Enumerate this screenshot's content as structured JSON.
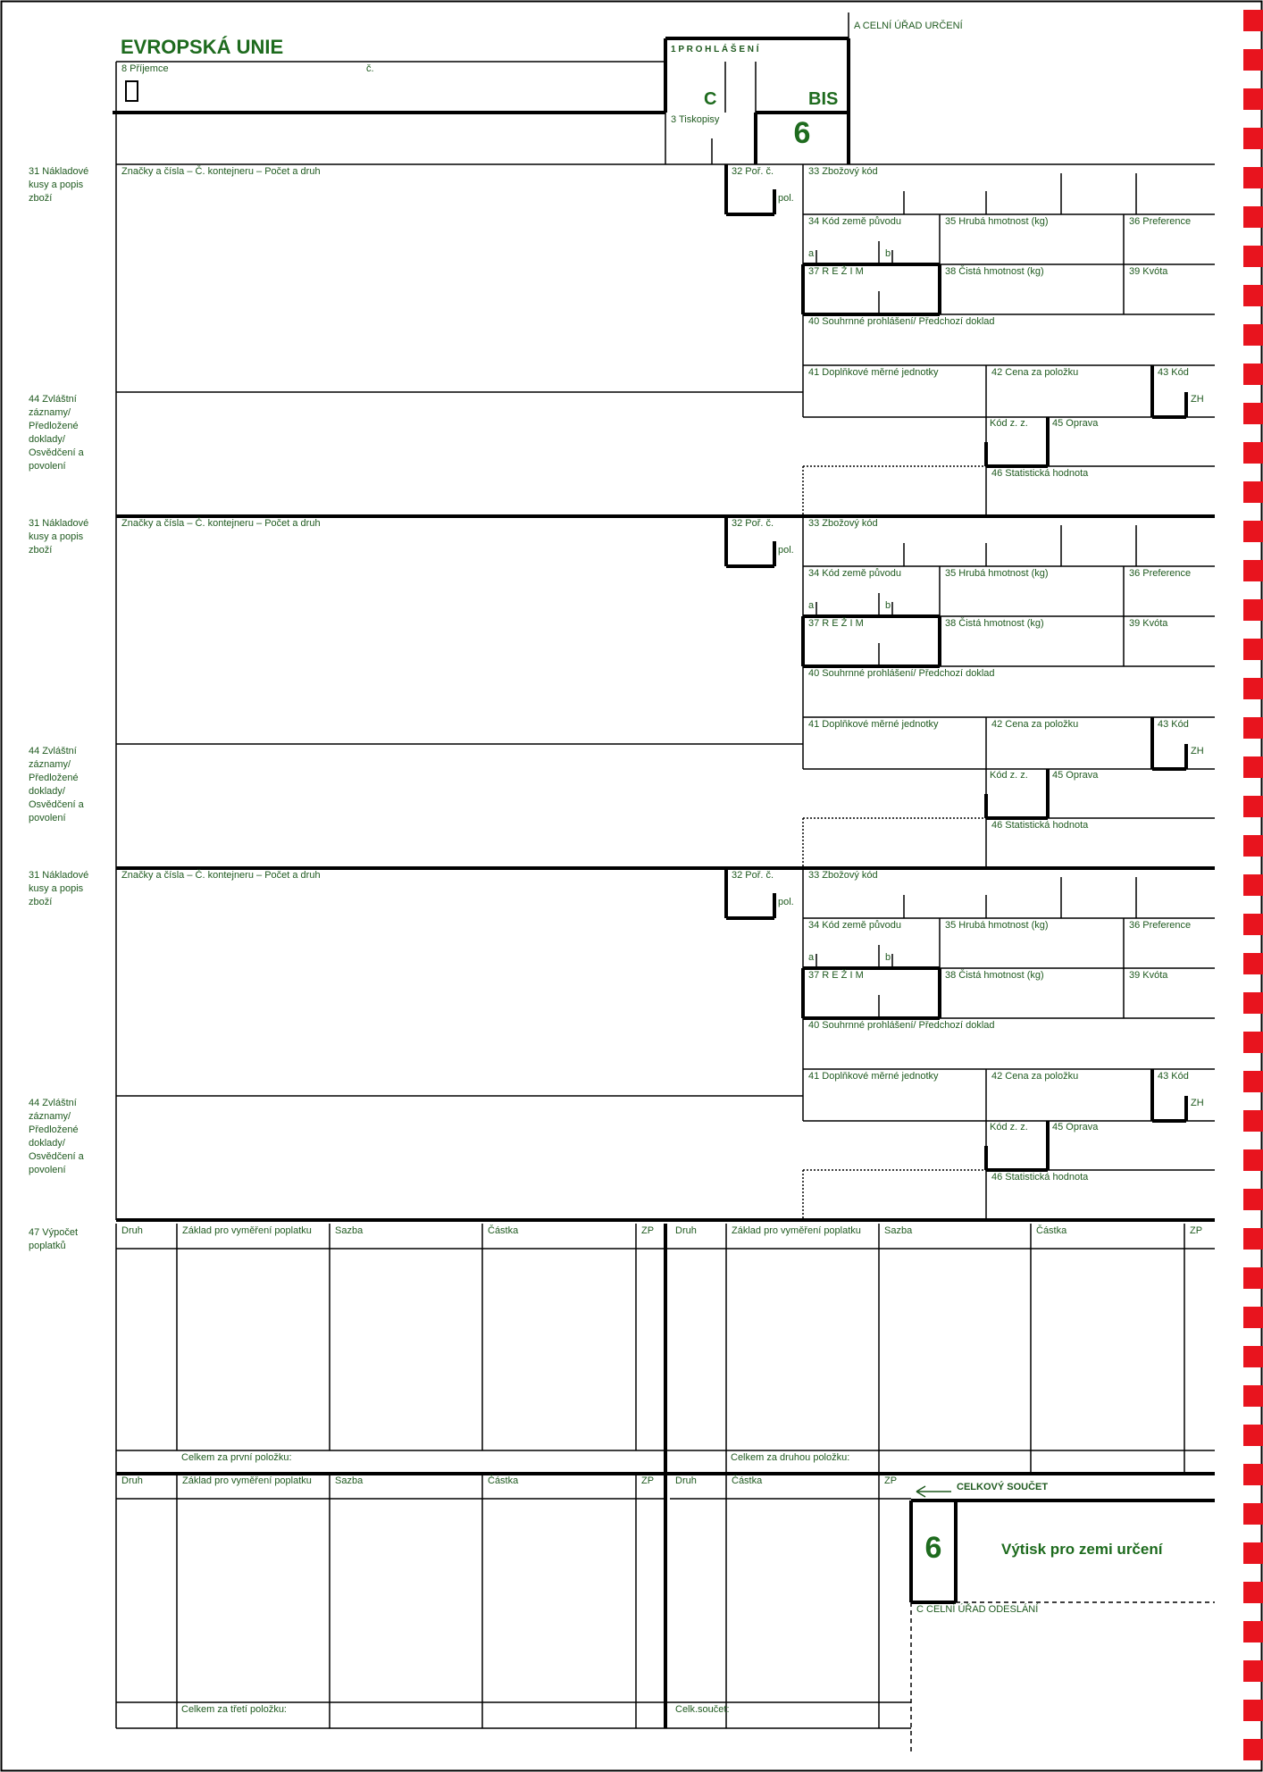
{
  "form": {
    "title": "EVROPSKÁ UNIE",
    "box_a": "A  CELNÍ ÚŘAD URČENÍ",
    "box_8": "8 Příjemce",
    "box_8_no": "č.",
    "box_1": "1 P R O H L Á Š E N Í",
    "box_1_c": "C",
    "box_1_bis": "BIS",
    "box_3": "3 Tiskopisy",
    "copy_number": "6",
    "box_c": "C  CELNÍ ÚŘAD ODESLÁNÍ"
  },
  "item_labels": {
    "box_31": "31 Nákladové kusy a popis zboží",
    "marks": "Značky a čísla – Č. kontejneru – Počet a druh",
    "box_32": "32 Poř. č.",
    "pol": "pol.",
    "box_33": "33 Zbožový kód",
    "box_34": "34 Kód země původu",
    "sub_a": "a",
    "sub_b": "b",
    "box_35": "35 Hrubá hmotnost (kg)",
    "box_36": "36 Preference",
    "box_37": "37 R E Ž I M",
    "box_38": "38 Čistá hmotnost (kg)",
    "box_39": "39 Kvóta",
    "box_40": "40 Souhrnné prohlášení/ Předchozí doklad",
    "box_41": "41 Doplňkové měrné jednotky",
    "box_42": "42 Cena za položku",
    "box_43": "43 Kód",
    "zh": "ZH",
    "kod_zz": "Kód z. z.",
    "box_45": "45 Oprava",
    "box_46": "46 Statistická hodnota",
    "box_44": "44 Zvláštní záznamy/ Předložené doklady/ Osvědčení a povolení"
  },
  "fees": {
    "box_47": "47 Výpočet poplatků",
    "col_druh": "Druh",
    "col_zaklad": "Základ pro vyměření poplatku",
    "col_sazba": "Sazba",
    "col_castka": "Částka",
    "col_zp": "ZP",
    "total_first": "Celkem za první položku:",
    "total_second": "Celkem za druhou položku:",
    "total_third": "Celkem za třetí položku:",
    "grand_sum": "Celk.součet:",
    "grand_total": "CELKOVÝ SOUČET",
    "copy_label": "Výtisk pro zemi určení"
  },
  "colors": {
    "ink": "#1f5a1f",
    "title_green": "#1e6b1e",
    "stripe_red": "#e8141e"
  }
}
